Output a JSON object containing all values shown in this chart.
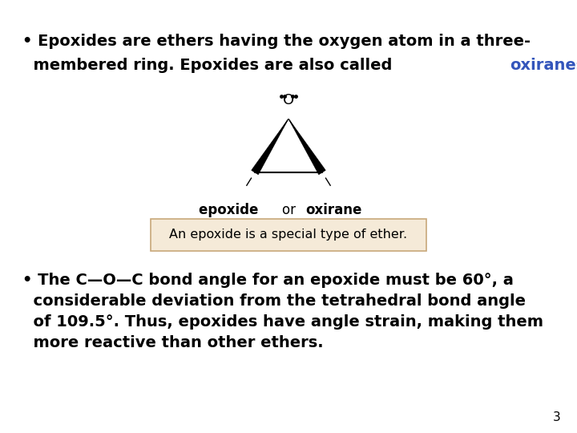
{
  "background_color": "#ffffff",
  "line1": "• Epoxides are ethers having the oxygen atom in a three-",
  "line2_prefix": "  membered ring. Epoxides are also called ",
  "line2_colored": "oxiranes",
  "line2_suffix": ".",
  "colored_word_color": "#3355bb",
  "caption_bold_parts": [
    "epoxide ",
    "or ",
    "oxirane"
  ],
  "caption_bold_flags": [
    true,
    false,
    true
  ],
  "box_text": "An epoxide is a special type of ether.",
  "box_facecolor": "#f5ead8",
  "box_edgecolor": "#c8a87a",
  "bullet2_lines": [
    "• The C—O—C bond angle for an epoxide must be 60°, a",
    "  considerable deviation from the tetrahedral bond angle",
    "  of 109.5°. Thus, epoxides have angle strain, making them",
    "  more reactive than other ethers."
  ],
  "page_number": "3",
  "font_size_main": 14,
  "font_size_caption": 12,
  "font_size_box": 11.5,
  "font_size_page": 11
}
